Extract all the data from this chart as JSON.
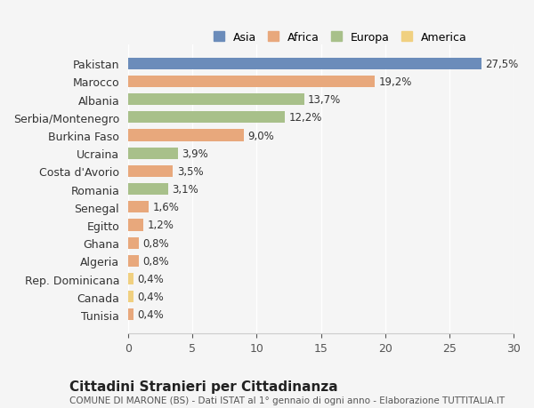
{
  "categories": [
    "Pakistan",
    "Marocco",
    "Albania",
    "Serbia/Montenegro",
    "Burkina Faso",
    "Ucraina",
    "Costa d'Avorio",
    "Romania",
    "Senegal",
    "Egitto",
    "Ghana",
    "Algeria",
    "Rep. Dominicana",
    "Canada",
    "Tunisia"
  ],
  "values": [
    27.5,
    19.2,
    13.7,
    12.2,
    9.0,
    3.9,
    3.5,
    3.1,
    1.6,
    1.2,
    0.8,
    0.8,
    0.4,
    0.4,
    0.4
  ],
  "labels": [
    "27,5%",
    "19,2%",
    "13,7%",
    "12,2%",
    "9,0%",
    "3,9%",
    "3,5%",
    "3,1%",
    "1,6%",
    "1,2%",
    "0,8%",
    "0,8%",
    "0,4%",
    "0,4%",
    "0,4%"
  ],
  "colors": [
    "#6b8cba",
    "#e8a87c",
    "#a8c08a",
    "#a8c08a",
    "#e8a87c",
    "#a8c08a",
    "#e8a87c",
    "#a8c08a",
    "#e8a87c",
    "#e8a87c",
    "#e8a87c",
    "#e8a87c",
    "#f0d080",
    "#f0d080",
    "#e8a87c"
  ],
  "continent": [
    "Asia",
    "Africa",
    "Europa",
    "Europa",
    "Africa",
    "Europa",
    "Africa",
    "Europa",
    "Africa",
    "Africa",
    "Africa",
    "Africa",
    "America",
    "America",
    "Africa"
  ],
  "legend_labels": [
    "Asia",
    "Africa",
    "Europa",
    "America"
  ],
  "legend_colors": [
    "#6b8cba",
    "#e8a87c",
    "#a8c08a",
    "#f0d080"
  ],
  "xlim": [
    0,
    30
  ],
  "xticks": [
    0,
    5,
    10,
    15,
    20,
    25,
    30
  ],
  "title": "Cittadini Stranieri per Cittadinanza",
  "subtitle": "COMUNE DI MARONE (BS) - Dati ISTAT al 1° gennaio di ogni anno - Elaborazione TUTTITALIA.IT",
  "bg_color": "#f5f5f5",
  "bar_height": 0.65,
  "label_fontsize": 8.5,
  "axis_fontsize": 9,
  "title_fontsize": 11
}
